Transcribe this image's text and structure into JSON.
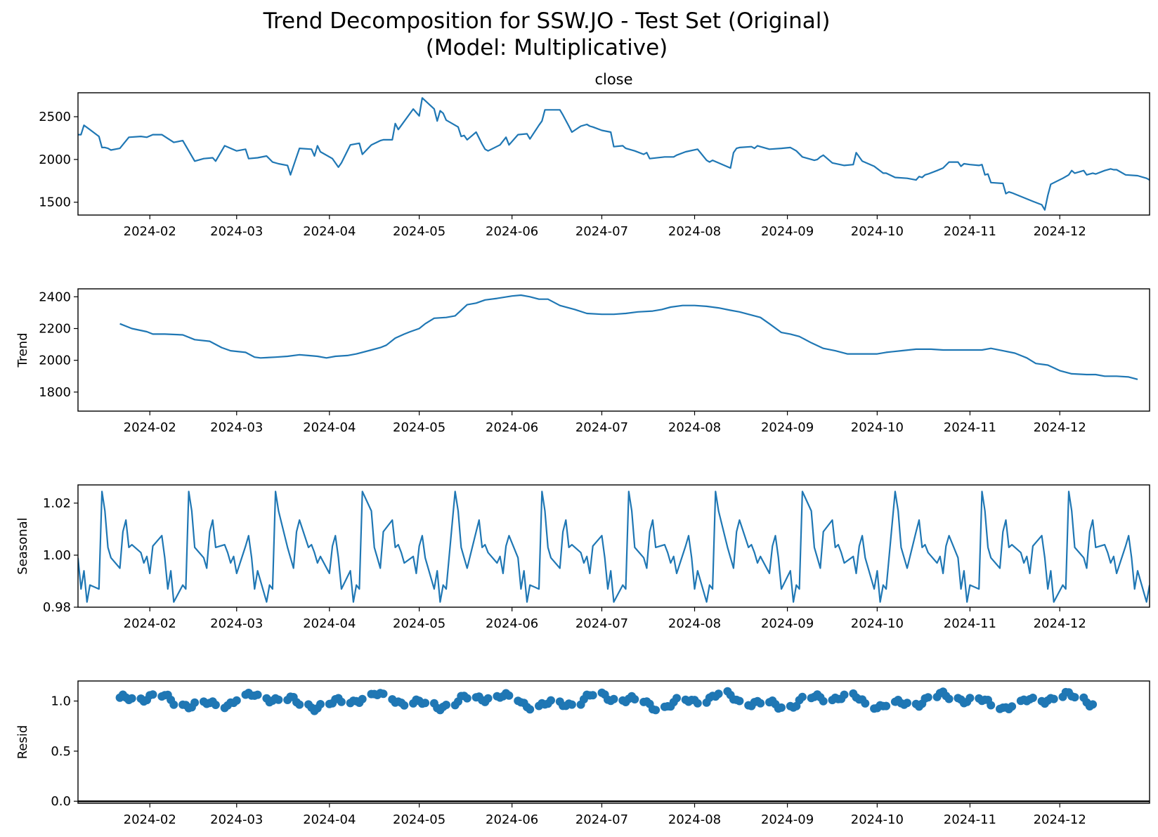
{
  "figure": {
    "title_line1": "Trend Decomposition for SSW.JO - Test Set (Original)",
    "title_line2": "(Model: Multiplicative)"
  },
  "colors": {
    "series": "#1f77b4",
    "axis": "#000000",
    "zero_line": "#000000"
  },
  "chart_data": [
    {
      "type": "line",
      "title": "close",
      "ylabel": "",
      "xlim": [
        "2024-01-08",
        "2024-12-31"
      ],
      "ylim": [
        1350,
        2780
      ],
      "yticks": [
        1500,
        2000,
        2500
      ],
      "xticks": [
        "2024-02",
        "2024-03",
        "2024-04",
        "2024-05",
        "2024-06",
        "2024-07",
        "2024-08",
        "2024-09",
        "2024-10",
        "2024-11",
        "2024-12"
      ],
      "points": [
        [
          "2024-01-08",
          2290
        ],
        [
          "2024-01-09",
          2290
        ],
        [
          "2024-01-10",
          2400
        ],
        [
          "2024-01-15",
          2270
        ],
        [
          "2024-01-16",
          2140
        ],
        [
          "2024-01-17",
          2140
        ],
        [
          "2024-01-18",
          2130
        ],
        [
          "2024-01-19",
          2110
        ],
        [
          "2024-01-22",
          2130
        ],
        [
          "2024-01-25",
          2260
        ],
        [
          "2024-01-29",
          2270
        ],
        [
          "2024-01-31",
          2260
        ],
        [
          "2024-02-02",
          2290
        ],
        [
          "2024-02-05",
          2290
        ],
        [
          "2024-02-09",
          2200
        ],
        [
          "2024-02-12",
          2220
        ],
        [
          "2024-02-16",
          1980
        ],
        [
          "2024-02-19",
          2010
        ],
        [
          "2024-02-22",
          2020
        ],
        [
          "2024-02-23",
          1980
        ],
        [
          "2024-02-26",
          2160
        ],
        [
          "2024-03-01",
          2100
        ],
        [
          "2024-03-04",
          2120
        ],
        [
          "2024-03-05",
          2010
        ],
        [
          "2024-03-08",
          2020
        ],
        [
          "2024-03-11",
          2040
        ],
        [
          "2024-03-13",
          1970
        ],
        [
          "2024-03-15",
          1950
        ],
        [
          "2024-03-18",
          1930
        ],
        [
          "2024-03-19",
          1820
        ],
        [
          "2024-03-21",
          2030
        ],
        [
          "2024-03-22",
          2130
        ],
        [
          "2024-03-26",
          2120
        ],
        [
          "2024-03-27",
          2040
        ],
        [
          "2024-03-28",
          2160
        ],
        [
          "2024-03-29",
          2090
        ],
        [
          "2024-04-02",
          2010
        ],
        [
          "2024-04-04",
          1910
        ],
        [
          "2024-04-05",
          1960
        ],
        [
          "2024-04-08",
          2170
        ],
        [
          "2024-04-11",
          2190
        ],
        [
          "2024-04-12",
          2060
        ],
        [
          "2024-04-15",
          2170
        ],
        [
          "2024-04-18",
          2220
        ],
        [
          "2024-04-19",
          2230
        ],
        [
          "2024-04-22",
          2230
        ],
        [
          "2024-04-23",
          2420
        ],
        [
          "2024-04-24",
          2350
        ],
        [
          "2024-04-29",
          2590
        ],
        [
          "2024-05-01",
          2510
        ],
        [
          "2024-05-02",
          2720
        ],
        [
          "2024-05-06",
          2590
        ],
        [
          "2024-05-07",
          2450
        ],
        [
          "2024-05-08",
          2570
        ],
        [
          "2024-05-09",
          2540
        ],
        [
          "2024-05-10",
          2460
        ],
        [
          "2024-05-14",
          2380
        ],
        [
          "2024-05-15",
          2270
        ],
        [
          "2024-05-16",
          2280
        ],
        [
          "2024-05-17",
          2230
        ],
        [
          "2024-05-20",
          2320
        ],
        [
          "2024-05-22",
          2180
        ],
        [
          "2024-05-23",
          2120
        ],
        [
          "2024-05-24",
          2100
        ],
        [
          "2024-05-28",
          2170
        ],
        [
          "2024-05-30",
          2260
        ],
        [
          "2024-05-31",
          2170
        ],
        [
          "2024-06-03",
          2290
        ],
        [
          "2024-06-06",
          2300
        ],
        [
          "2024-06-07",
          2240
        ],
        [
          "2024-06-10",
          2400
        ],
        [
          "2024-06-11",
          2450
        ],
        [
          "2024-06-12",
          2580
        ],
        [
          "2024-06-17",
          2580
        ],
        [
          "2024-06-18",
          2520
        ],
        [
          "2024-06-20",
          2390
        ],
        [
          "2024-06-21",
          2320
        ],
        [
          "2024-06-24",
          2390
        ],
        [
          "2024-06-26",
          2410
        ],
        [
          "2024-06-27",
          2390
        ],
        [
          "2024-06-28",
          2380
        ],
        [
          "2024-07-01",
          2340
        ],
        [
          "2024-07-04",
          2320
        ],
        [
          "2024-07-05",
          2150
        ],
        [
          "2024-07-08",
          2160
        ],
        [
          "2024-07-09",
          2130
        ],
        [
          "2024-07-12",
          2100
        ],
        [
          "2024-07-15",
          2060
        ],
        [
          "2024-07-16",
          2080
        ],
        [
          "2024-07-17",
          2010
        ],
        [
          "2024-07-22",
          2030
        ],
        [
          "2024-07-25",
          2030
        ],
        [
          "2024-07-26",
          2050
        ],
        [
          "2024-07-29",
          2090
        ],
        [
          "2024-08-02",
          2120
        ],
        [
          "2024-08-05",
          1990
        ],
        [
          "2024-08-06",
          1970
        ],
        [
          "2024-08-07",
          1990
        ],
        [
          "2024-08-13",
          1900
        ],
        [
          "2024-08-14",
          2080
        ],
        [
          "2024-08-15",
          2130
        ],
        [
          "2024-08-16",
          2140
        ],
        [
          "2024-08-20",
          2150
        ],
        [
          "2024-08-21",
          2130
        ],
        [
          "2024-08-22",
          2160
        ],
        [
          "2024-08-23",
          2150
        ],
        [
          "2024-08-26",
          2120
        ],
        [
          "2024-08-30",
          2130
        ],
        [
          "2024-09-02",
          2140
        ],
        [
          "2024-09-03",
          2120
        ],
        [
          "2024-09-04",
          2100
        ],
        [
          "2024-09-06",
          2030
        ],
        [
          "2024-09-10",
          1990
        ],
        [
          "2024-09-11",
          2000
        ],
        [
          "2024-09-12",
          2030
        ],
        [
          "2024-09-13",
          2050
        ],
        [
          "2024-09-16",
          1960
        ],
        [
          "2024-09-20",
          1930
        ],
        [
          "2024-09-23",
          1940
        ],
        [
          "2024-09-24",
          2080
        ],
        [
          "2024-09-26",
          1980
        ],
        [
          "2024-09-30",
          1920
        ],
        [
          "2024-10-03",
          1840
        ],
        [
          "2024-10-04",
          1840
        ],
        [
          "2024-10-07",
          1790
        ],
        [
          "2024-10-11",
          1780
        ],
        [
          "2024-10-14",
          1760
        ],
        [
          "2024-10-15",
          1800
        ],
        [
          "2024-10-16",
          1790
        ],
        [
          "2024-10-17",
          1820
        ],
        [
          "2024-10-18",
          1830
        ],
        [
          "2024-10-21",
          1870
        ],
        [
          "2024-10-23",
          1900
        ],
        [
          "2024-10-25",
          1970
        ],
        [
          "2024-10-28",
          1970
        ],
        [
          "2024-10-29",
          1920
        ],
        [
          "2024-10-30",
          1950
        ],
        [
          "2024-11-01",
          1940
        ],
        [
          "2024-11-04",
          1930
        ],
        [
          "2024-11-05",
          1940
        ],
        [
          "2024-11-06",
          1820
        ],
        [
          "2024-11-07",
          1830
        ],
        [
          "2024-11-08",
          1730
        ],
        [
          "2024-11-12",
          1720
        ],
        [
          "2024-11-13",
          1600
        ],
        [
          "2024-11-14",
          1620
        ],
        [
          "2024-11-15",
          1610
        ],
        [
          "2024-11-22",
          1510
        ],
        [
          "2024-11-25",
          1470
        ],
        [
          "2024-11-26",
          1410
        ],
        [
          "2024-11-27",
          1580
        ],
        [
          "2024-11-28",
          1710
        ],
        [
          "2024-12-02",
          1780
        ],
        [
          "2024-12-04",
          1820
        ],
        [
          "2024-12-05",
          1870
        ],
        [
          "2024-12-06",
          1840
        ],
        [
          "2024-12-09",
          1870
        ],
        [
          "2024-12-10",
          1820
        ],
        [
          "2024-12-12",
          1840
        ],
        [
          "2024-12-13",
          1830
        ],
        [
          "2024-12-16",
          1870
        ],
        [
          "2024-12-18",
          1890
        ],
        [
          "2024-12-19",
          1880
        ],
        [
          "2024-12-20",
          1880
        ],
        [
          "2024-12-23",
          1820
        ],
        [
          "2024-12-27",
          1810
        ],
        [
          "2024-12-30",
          1780
        ],
        [
          "2024-12-31",
          1760
        ]
      ],
      "points_note": "",
      "x": []
    },
    {
      "type": "line",
      "title": "",
      "ylabel": "Trend",
      "xlim": [
        "2024-01-08",
        "2024-12-31"
      ],
      "ylim": [
        1680,
        2450
      ],
      "yticks": [
        1800,
        2000,
        2200,
        2400
      ],
      "xticks": [
        "2024-02",
        "2024-03",
        "2024-04",
        "2024-05",
        "2024-06",
        "2024-07",
        "2024-08",
        "2024-09",
        "2024-10",
        "2024-11",
        "2024-12"
      ],
      "points": [
        [
          "2024-01-22",
          2230
        ],
        [
          "2024-01-26",
          2200
        ],
        [
          "2024-01-31",
          2180
        ],
        [
          "2024-02-02",
          2165
        ],
        [
          "2024-02-06",
          2165
        ],
        [
          "2024-02-12",
          2160
        ],
        [
          "2024-02-16",
          2130
        ],
        [
          "2024-02-21",
          2120
        ],
        [
          "2024-02-25",
          2080
        ],
        [
          "2024-02-28",
          2060
        ],
        [
          "2024-03-04",
          2050
        ],
        [
          "2024-03-07",
          2020
        ],
        [
          "2024-03-09",
          2015
        ],
        [
          "2024-03-14",
          2020
        ],
        [
          "2024-03-18",
          2025
        ],
        [
          "2024-03-22",
          2035
        ],
        [
          "2024-03-25",
          2030
        ],
        [
          "2024-03-28",
          2025
        ],
        [
          "2024-03-31",
          2015
        ],
        [
          "2024-04-03",
          2025
        ],
        [
          "2024-04-07",
          2030
        ],
        [
          "2024-04-10",
          2040
        ],
        [
          "2024-04-15",
          2065
        ],
        [
          "2024-04-18",
          2080
        ],
        [
          "2024-04-20",
          2095
        ],
        [
          "2024-04-23",
          2140
        ],
        [
          "2024-04-26",
          2165
        ],
        [
          "2024-04-28",
          2180
        ],
        [
          "2024-05-01",
          2200
        ],
        [
          "2024-05-03",
          2230
        ],
        [
          "2024-05-06",
          2265
        ],
        [
          "2024-05-10",
          2270
        ],
        [
          "2024-05-13",
          2280
        ],
        [
          "2024-05-17",
          2350
        ],
        [
          "2024-05-20",
          2360
        ],
        [
          "2024-05-23",
          2380
        ],
        [
          "2024-05-27",
          2390
        ],
        [
          "2024-06-01",
          2405
        ],
        [
          "2024-06-04",
          2410
        ],
        [
          "2024-06-07",
          2400
        ],
        [
          "2024-06-10",
          2385
        ],
        [
          "2024-06-13",
          2385
        ],
        [
          "2024-06-17",
          2345
        ],
        [
          "2024-06-22",
          2320
        ],
        [
          "2024-06-26",
          2295
        ],
        [
          "2024-07-01",
          2290
        ],
        [
          "2024-07-05",
          2290
        ],
        [
          "2024-07-09",
          2295
        ],
        [
          "2024-07-13",
          2305
        ],
        [
          "2024-07-18",
          2310
        ],
        [
          "2024-07-21",
          2320
        ],
        [
          "2024-07-24",
          2335
        ],
        [
          "2024-07-28",
          2345
        ],
        [
          "2024-08-01",
          2345
        ],
        [
          "2024-08-05",
          2340
        ],
        [
          "2024-08-09",
          2330
        ],
        [
          "2024-08-13",
          2315
        ],
        [
          "2024-08-16",
          2305
        ],
        [
          "2024-08-20",
          2285
        ],
        [
          "2024-08-23",
          2270
        ],
        [
          "2024-08-26",
          2230
        ],
        [
          "2024-08-30",
          2175
        ],
        [
          "2024-09-02",
          2165
        ],
        [
          "2024-09-05",
          2150
        ],
        [
          "2024-09-09",
          2110
        ],
        [
          "2024-09-13",
          2075
        ],
        [
          "2024-09-17",
          2060
        ],
        [
          "2024-09-21",
          2040
        ],
        [
          "2024-09-25",
          2040
        ],
        [
          "2024-10-01",
          2040
        ],
        [
          "2024-10-04",
          2050
        ],
        [
          "2024-10-09",
          2060
        ],
        [
          "2024-10-14",
          2070
        ],
        [
          "2024-10-19",
          2070
        ],
        [
          "2024-10-23",
          2065
        ],
        [
          "2024-10-27",
          2065
        ],
        [
          "2024-11-01",
          2065
        ],
        [
          "2024-11-05",
          2065
        ],
        [
          "2024-11-08",
          2075
        ],
        [
          "2024-11-12",
          2060
        ],
        [
          "2024-11-16",
          2045
        ],
        [
          "2024-11-20",
          2015
        ],
        [
          "2024-11-23",
          1980
        ],
        [
          "2024-11-27",
          1970
        ],
        [
          "2024-12-01",
          1935
        ],
        [
          "2024-12-05",
          1915
        ],
        [
          "2024-12-10",
          1910
        ],
        [
          "2024-12-13",
          1910
        ],
        [
          "2024-12-16",
          1900
        ],
        [
          "2024-12-20",
          1900
        ],
        [
          "2024-12-24",
          1895
        ],
        [
          "2024-12-27",
          1880
        ]
      ],
      "points_note": "",
      "x": []
    },
    {
      "type": "line",
      "title": "",
      "ylabel": "Seasonal",
      "xlim": [
        "2024-01-08",
        "2024-12-31"
      ],
      "ylim": [
        0.98,
        1.027
      ],
      "yticks": [
        0.98,
        1.0,
        1.02
      ],
      "xticks": [
        "2024-02",
        "2024-03",
        "2024-04",
        "2024-05",
        "2024-06",
        "2024-07",
        "2024-08",
        "2024-09",
        "2024-10",
        "2024-11",
        "2024-12"
      ],
      "points": [],
      "points_note": "",
      "x": []
    },
    {
      "type": "scatter",
      "title": "",
      "ylabel": "Resid",
      "xlim": [
        "2024-01-08",
        "2024-12-31"
      ],
      "ylim": [
        -0.02,
        1.2
      ],
      "yticks": [
        0.0,
        0.5,
        1.0
      ],
      "xticks": [
        "2024-02",
        "2024-03",
        "2024-04",
        "2024-05",
        "2024-06",
        "2024-07",
        "2024-08",
        "2024-09",
        "2024-10",
        "2024-11",
        "2024-12"
      ],
      "points": [],
      "points_note": "",
      "x": []
    }
  ]
}
